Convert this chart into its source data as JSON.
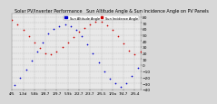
{
  "title": "Solar PV/Inverter Performance   Sun Altitude Angle & Sun Incidence Angle on PV Panels",
  "legend_labels": [
    "Sun Altitude Angle",
    "Sun Incidence Angle"
  ],
  "legend_colors": [
    "#0000cc",
    "#cc0000"
  ],
  "bg_color": "#d8d8d8",
  "plot_bg": "#e8e8e8",
  "grid_color": "#aaaaaa",
  "xlim": [
    0,
    46
  ],
  "ylim": [
    -40,
    85
  ],
  "yticks": [
    80,
    70,
    60,
    50,
    40,
    30,
    20,
    10,
    0,
    -10,
    -20,
    -30,
    -40
  ],
  "xlabel_fontsize": 3.0,
  "ylabel_fontsize": 3.2,
  "title_fontsize": 3.5,
  "sun_altitude_x": [
    1,
    3,
    5,
    7,
    9,
    11,
    13,
    15,
    17,
    19,
    21,
    23,
    25,
    27,
    29,
    31,
    33,
    35,
    37,
    39,
    41,
    43,
    45
  ],
  "sun_altitude_y": [
    -32,
    -20,
    -8,
    8,
    22,
    38,
    52,
    60,
    65,
    67,
    65,
    58,
    48,
    35,
    20,
    5,
    -10,
    -22,
    -30,
    -36,
    -30,
    -18,
    -5
  ],
  "sun_incidence_x": [
    0,
    2,
    4,
    6,
    8,
    10,
    12,
    14,
    16,
    18,
    20,
    22,
    24,
    26,
    28,
    30,
    32,
    34,
    36,
    38,
    40,
    42,
    44,
    46
  ],
  "sun_incidence_y": [
    75,
    68,
    58,
    48,
    38,
    28,
    20,
    18,
    22,
    30,
    38,
    46,
    55,
    62,
    68,
    72,
    72,
    66,
    58,
    48,
    36,
    24,
    18,
    22
  ],
  "xtick_positions": [
    0,
    4,
    8,
    12,
    16,
    20,
    24,
    28,
    32,
    36,
    40,
    44
  ],
  "xtick_labels": [
    "4/5",
    "1-3d",
    "5.8k",
    "1/8.7",
    "1/9.7",
    "5.9k",
    "2/2.7",
    "2/3.7",
    "2/5.5",
    "1/3a",
    "7/4.7",
    "2/5.4"
  ]
}
